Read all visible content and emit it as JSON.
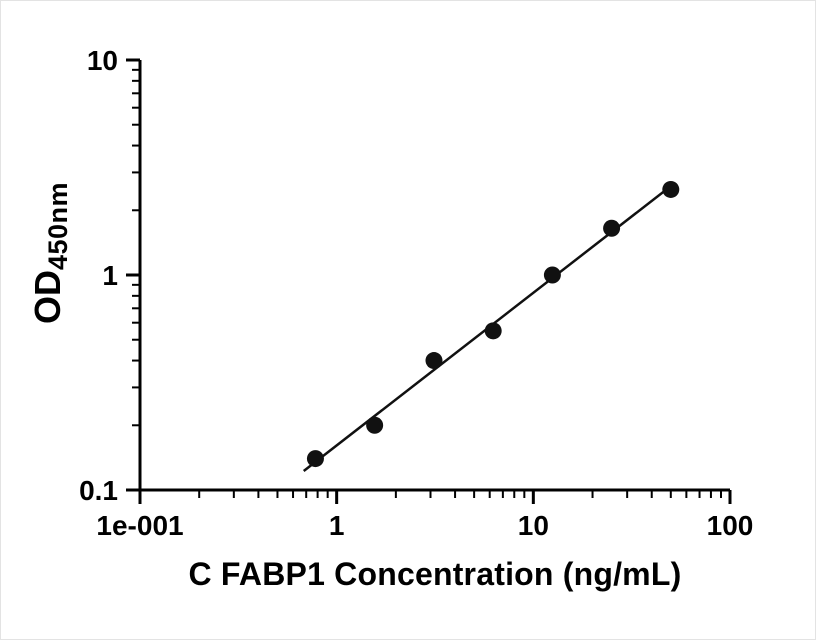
{
  "chart_data": {
    "type": "scatter",
    "title": "",
    "xlabel": "C FABP1 Concentration (ng/mL)",
    "ylabel_main": "OD",
    "ylabel_sub": "450nm",
    "x_scale": "log10",
    "y_scale": "log10",
    "xlim": [
      0.1,
      100
    ],
    "ylim": [
      0.1,
      10
    ],
    "grid": false,
    "legend": false,
    "x_ticks": [
      {
        "value": 0.1,
        "label": "1e-001"
      },
      {
        "value": 1,
        "label": "1"
      },
      {
        "value": 10,
        "label": "10"
      },
      {
        "value": 100,
        "label": "100"
      }
    ],
    "y_ticks": [
      {
        "value": 0.1,
        "label": "0.1"
      },
      {
        "value": 1,
        "label": "1"
      },
      {
        "value": 10,
        "label": "10"
      }
    ],
    "points": [
      {
        "x": 0.78,
        "y": 0.14
      },
      {
        "x": 1.56,
        "y": 0.2
      },
      {
        "x": 3.125,
        "y": 0.4
      },
      {
        "x": 6.25,
        "y": 0.55
      },
      {
        "x": 12.5,
        "y": 1.0
      },
      {
        "x": 25,
        "y": 1.65
      },
      {
        "x": 50,
        "y": 2.5
      }
    ],
    "trendline": {
      "fit": "linear-loglog",
      "x_start": 0.68,
      "x_end": 50
    },
    "marker_color": "#111111",
    "line_color": "#111111",
    "axis_color": "#000000"
  }
}
